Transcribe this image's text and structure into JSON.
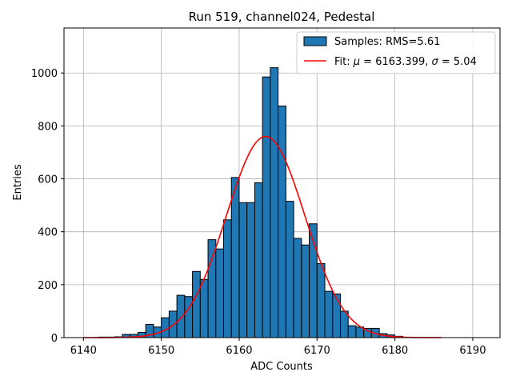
{
  "chart_data": {
    "type": "bar",
    "title": "Run 519, channel024, Pedestal",
    "xlabel": "ADC Counts",
    "ylabel": "Entries",
    "xlim": [
      6137.5,
      6193.5
    ],
    "ylim": [
      0,
      1170
    ],
    "xticks": [
      6140,
      6150,
      6160,
      6170,
      6180,
      6190
    ],
    "yticks": [
      0,
      200,
      400,
      600,
      800,
      1000
    ],
    "grid": true,
    "legend_position": "top-right",
    "bar_color": "#1f77b4",
    "fit_color": "#ff0000",
    "histogram": {
      "name": "Samples: RMS=5.61",
      "bin_width": 1,
      "bin_starts": [
        6142,
        6143,
        6144,
        6145,
        6146,
        6147,
        6148,
        6149,
        6150,
        6151,
        6152,
        6153,
        6154,
        6155,
        6156,
        6157,
        6158,
        6159,
        6160,
        6161,
        6162,
        6163,
        6164,
        6165,
        6166,
        6167,
        6168,
        6169,
        6170,
        6171,
        6172,
        6173,
        6174,
        6175,
        6176,
        6177,
        6178,
        6179,
        6180
      ],
      "counts": [
        2,
        2,
        3,
        12,
        12,
        20,
        50,
        40,
        75,
        100,
        160,
        155,
        250,
        220,
        370,
        335,
        445,
        605,
        510,
        510,
        585,
        985,
        1020,
        875,
        515,
        375,
        350,
        430,
        280,
        175,
        165,
        100,
        45,
        40,
        35,
        35,
        15,
        10,
        5
      ]
    },
    "fit": {
      "name_prefix": "Fit: ",
      "name_mu": "μ",
      "name_mid": " = 6163.399, ",
      "name_sigma": "σ",
      "name_suffix": " = 5.04",
      "mu": 6163.399,
      "sigma": 5.04,
      "amplitude": 760,
      "x_range": [
        6140,
        6186
      ]
    }
  }
}
